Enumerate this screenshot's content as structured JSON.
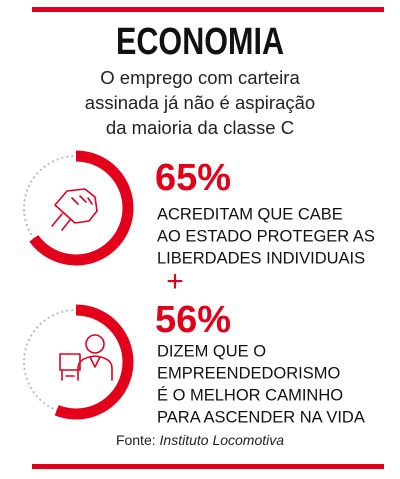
{
  "header": {
    "title": "ECONOMIA",
    "subtitle": [
      "O emprego com carteira",
      "assinada já não é aspiração",
      "da maioria da classe C"
    ]
  },
  "stats": [
    {
      "value": 65,
      "value_label": "65%",
      "text": [
        "ACREDITAM QUE CABE",
        "AO ESTADO PROTEGER AS",
        "LIBERDADES INDIVIDUAIS"
      ]
    },
    {
      "value": 56,
      "value_label": "56%",
      "text": [
        "DIZEM QUE O",
        "EMPREENDEDORISMO",
        "É O MELHOR CAMINHO",
        "PARA ASCENDER NA VIDA"
      ]
    }
  ],
  "source": {
    "label": "Fonte:",
    "name": "Instituto Locomotiva"
  }
}
